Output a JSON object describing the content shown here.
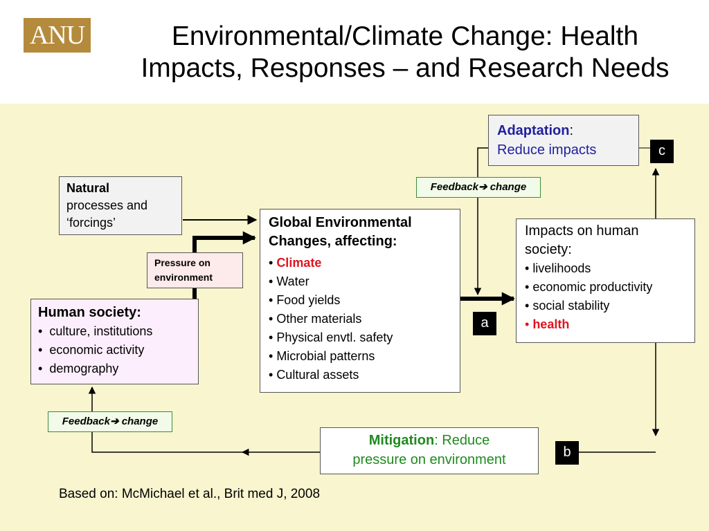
{
  "header": {
    "logo_text": "ANU",
    "title_line1": "Environmental/Climate Change:  Health",
    "title_line2": "Impacts, Responses – and Research Needs"
  },
  "natural": {
    "bold": "Natural",
    "line2": "processes and",
    "line3": "‘forcings’"
  },
  "pressure": {
    "line1": "Pressure on",
    "line2": "environment"
  },
  "human_society": {
    "title": "Human society:",
    "items": [
      "culture, institutions",
      "economic activity",
      "demography"
    ]
  },
  "global_changes": {
    "title_line1": "Global Environmental",
    "title_line2": "Changes, affecting:",
    "items": [
      "Climate",
      "Water",
      "Food yields",
      "Other materials",
      "Physical envtl. safety",
      "Microbial patterns",
      "Cultural assets"
    ]
  },
  "impacts": {
    "title_line1": "Impacts on human",
    "title_line2": "society:",
    "items": [
      "livelihoods",
      "economic productivity",
      "social stability",
      "health"
    ]
  },
  "adaptation": {
    "bold": "Adaptation",
    "suffix": ":",
    "line2": "Reduce impacts"
  },
  "mitigation": {
    "bold": "Mitigation",
    "suffix": ": Reduce",
    "line2": "pressure on environment"
  },
  "feedback_labels": {
    "top": "Feedback➔ change",
    "bottom": "Feedback➔ change"
  },
  "tags": {
    "a": "a",
    "b": "b",
    "c": "c"
  },
  "footer": "Based on: McMichael et al., Brit med J, 2008",
  "colors": {
    "logo_gold": "#b48a3c",
    "panel_bg": "#f8f5cf",
    "highlight_red": "#e0141e",
    "adaptation_blue": "#1f1f9e",
    "mitigation_green": "#1f8a1f",
    "natural_bg": "#f2f2f2",
    "pressure_bg": "#fdeaea",
    "human_bg": "#fdeefd",
    "feedback_bg": "#f2fbe9"
  }
}
